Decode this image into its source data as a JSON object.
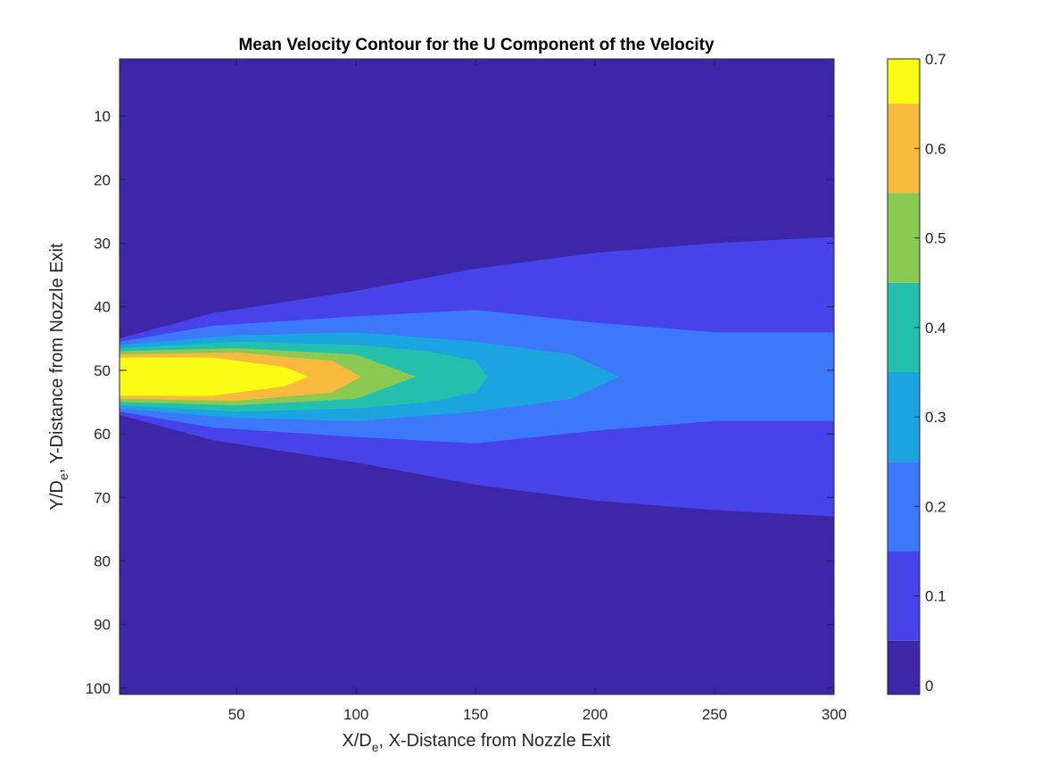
{
  "chart_data": {
    "type": "heatmap",
    "subtype": "filled-contour",
    "title": "Mean Velocity Contour for the U Component of the Velocity",
    "xlabel": {
      "main": "X/D",
      "sub": "e",
      "rest": ", X-Distance from Nozzle Exit"
    },
    "ylabel": {
      "main": "Y/D",
      "sub": "e",
      "rest": ", Y-Distance from Nozzle Exit"
    },
    "xlim": [
      1,
      300
    ],
    "ylim": [
      1,
      101
    ],
    "y_direction": "reversed",
    "xticks": [
      50,
      100,
      150,
      200,
      250,
      300
    ],
    "yticks": [
      10,
      20,
      30,
      40,
      50,
      60,
      70,
      80,
      90,
      100
    ],
    "colormap": "parula",
    "colorbar": {
      "limits": [
        -0.01,
        0.7
      ],
      "ticks": [
        0,
        0.1,
        0.2,
        0.3,
        0.4,
        0.5,
        0.6,
        0.7
      ],
      "tick_labels": [
        "0",
        "0.1",
        "0.2",
        "0.3",
        "0.4",
        "0.5",
        "0.6",
        "0.7"
      ],
      "colors": [
        "#3e26a8",
        "#4742e9",
        "#3c78f9",
        "#1ca4e1",
        "#24c0ae",
        "#8ac952",
        "#f8ba3d",
        "#f9fb14"
      ]
    },
    "jet_centerline_y": 51,
    "contour_levels": [
      {
        "level": 0.05,
        "halfwidth_x": [
          1,
          40,
          100,
          150,
          200,
          250,
          300
        ],
        "halfwidth_y": [
          6,
          10,
          13.5,
          17,
          19.5,
          21,
          22
        ]
      },
      {
        "level": 0.15,
        "halfwidth_x": [
          1,
          40,
          100,
          150,
          200,
          250,
          300
        ],
        "halfwidth_y": [
          5.5,
          8,
          9.5,
          10.5,
          8.5,
          7,
          7
        ]
      },
      {
        "level": 0.25,
        "halfwidth_x": [
          1,
          50,
          100,
          150,
          190,
          210
        ],
        "halfwidth_y": [
          5,
          6.5,
          7,
          5.5,
          3.5,
          0
        ]
      },
      {
        "level": 0.35,
        "halfwidth_x": [
          1,
          50,
          100,
          130,
          150,
          155
        ],
        "halfwidth_y": [
          4.5,
          5.5,
          5,
          4,
          2.5,
          0
        ]
      },
      {
        "level": 0.45,
        "halfwidth_x": [
          1,
          50,
          100,
          125
        ],
        "halfwidth_y": [
          4,
          4.5,
          3.5,
          0
        ]
      },
      {
        "level": 0.55,
        "halfwidth_x": [
          1,
          50,
          90,
          102
        ],
        "halfwidth_y": [
          3.5,
          3.8,
          2.5,
          0
        ]
      },
      {
        "level": 0.65,
        "halfwidth_x": [
          1,
          40,
          70,
          80
        ],
        "halfwidth_y": [
          3,
          3,
          1.5,
          0
        ]
      }
    ]
  }
}
